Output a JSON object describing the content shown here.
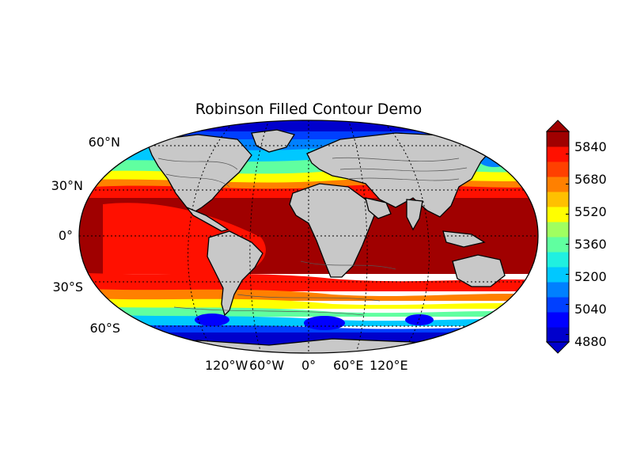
{
  "title": "Robinson Filled Contour Demo",
  "lat_labels": [
    "60°N",
    "30°N",
    "0°",
    "30°S",
    "60°S"
  ],
  "lon_labels": [
    "120°W",
    "60°W",
    "0°",
    "60°E",
    "120°E"
  ],
  "colorbar": {
    "tick_labels": [
      "5840",
      "5680",
      "5520",
      "5360",
      "5200",
      "5040",
      "4880"
    ],
    "levels": [
      4880,
      4960,
      5040,
      5120,
      5200,
      5280,
      5360,
      5440,
      5520,
      5600,
      5680,
      5760,
      5840,
      5920
    ],
    "colors": [
      "#0000cc",
      "#0000ff",
      "#0040ff",
      "#0080ff",
      "#00c8ff",
      "#20f0e0",
      "#60ffa0",
      "#a0ff60",
      "#ffff00",
      "#ffc000",
      "#ff8000",
      "#ff4000",
      "#ff1000",
      "#a00000"
    ],
    "extend": "both"
  },
  "chart_data": {
    "type": "heatmap",
    "title": "Robinson Filled Contour Demo",
    "projection": "robinson",
    "levels": [
      4880,
      4960,
      5040,
      5120,
      5200,
      5280,
      5360,
      5440,
      5520,
      5600,
      5680,
      5760,
      5840,
      5920
    ],
    "lat_ticks": [
      "60°N",
      "30°N",
      "0°",
      "30°S",
      "60°S"
    ],
    "lon_ticks": [
      "120°W",
      "60°W",
      "0°",
      "60°E",
      "120°E"
    ],
    "grid": true
  },
  "colors": {
    "land": "#c8c8c8",
    "grid": "#000000"
  }
}
